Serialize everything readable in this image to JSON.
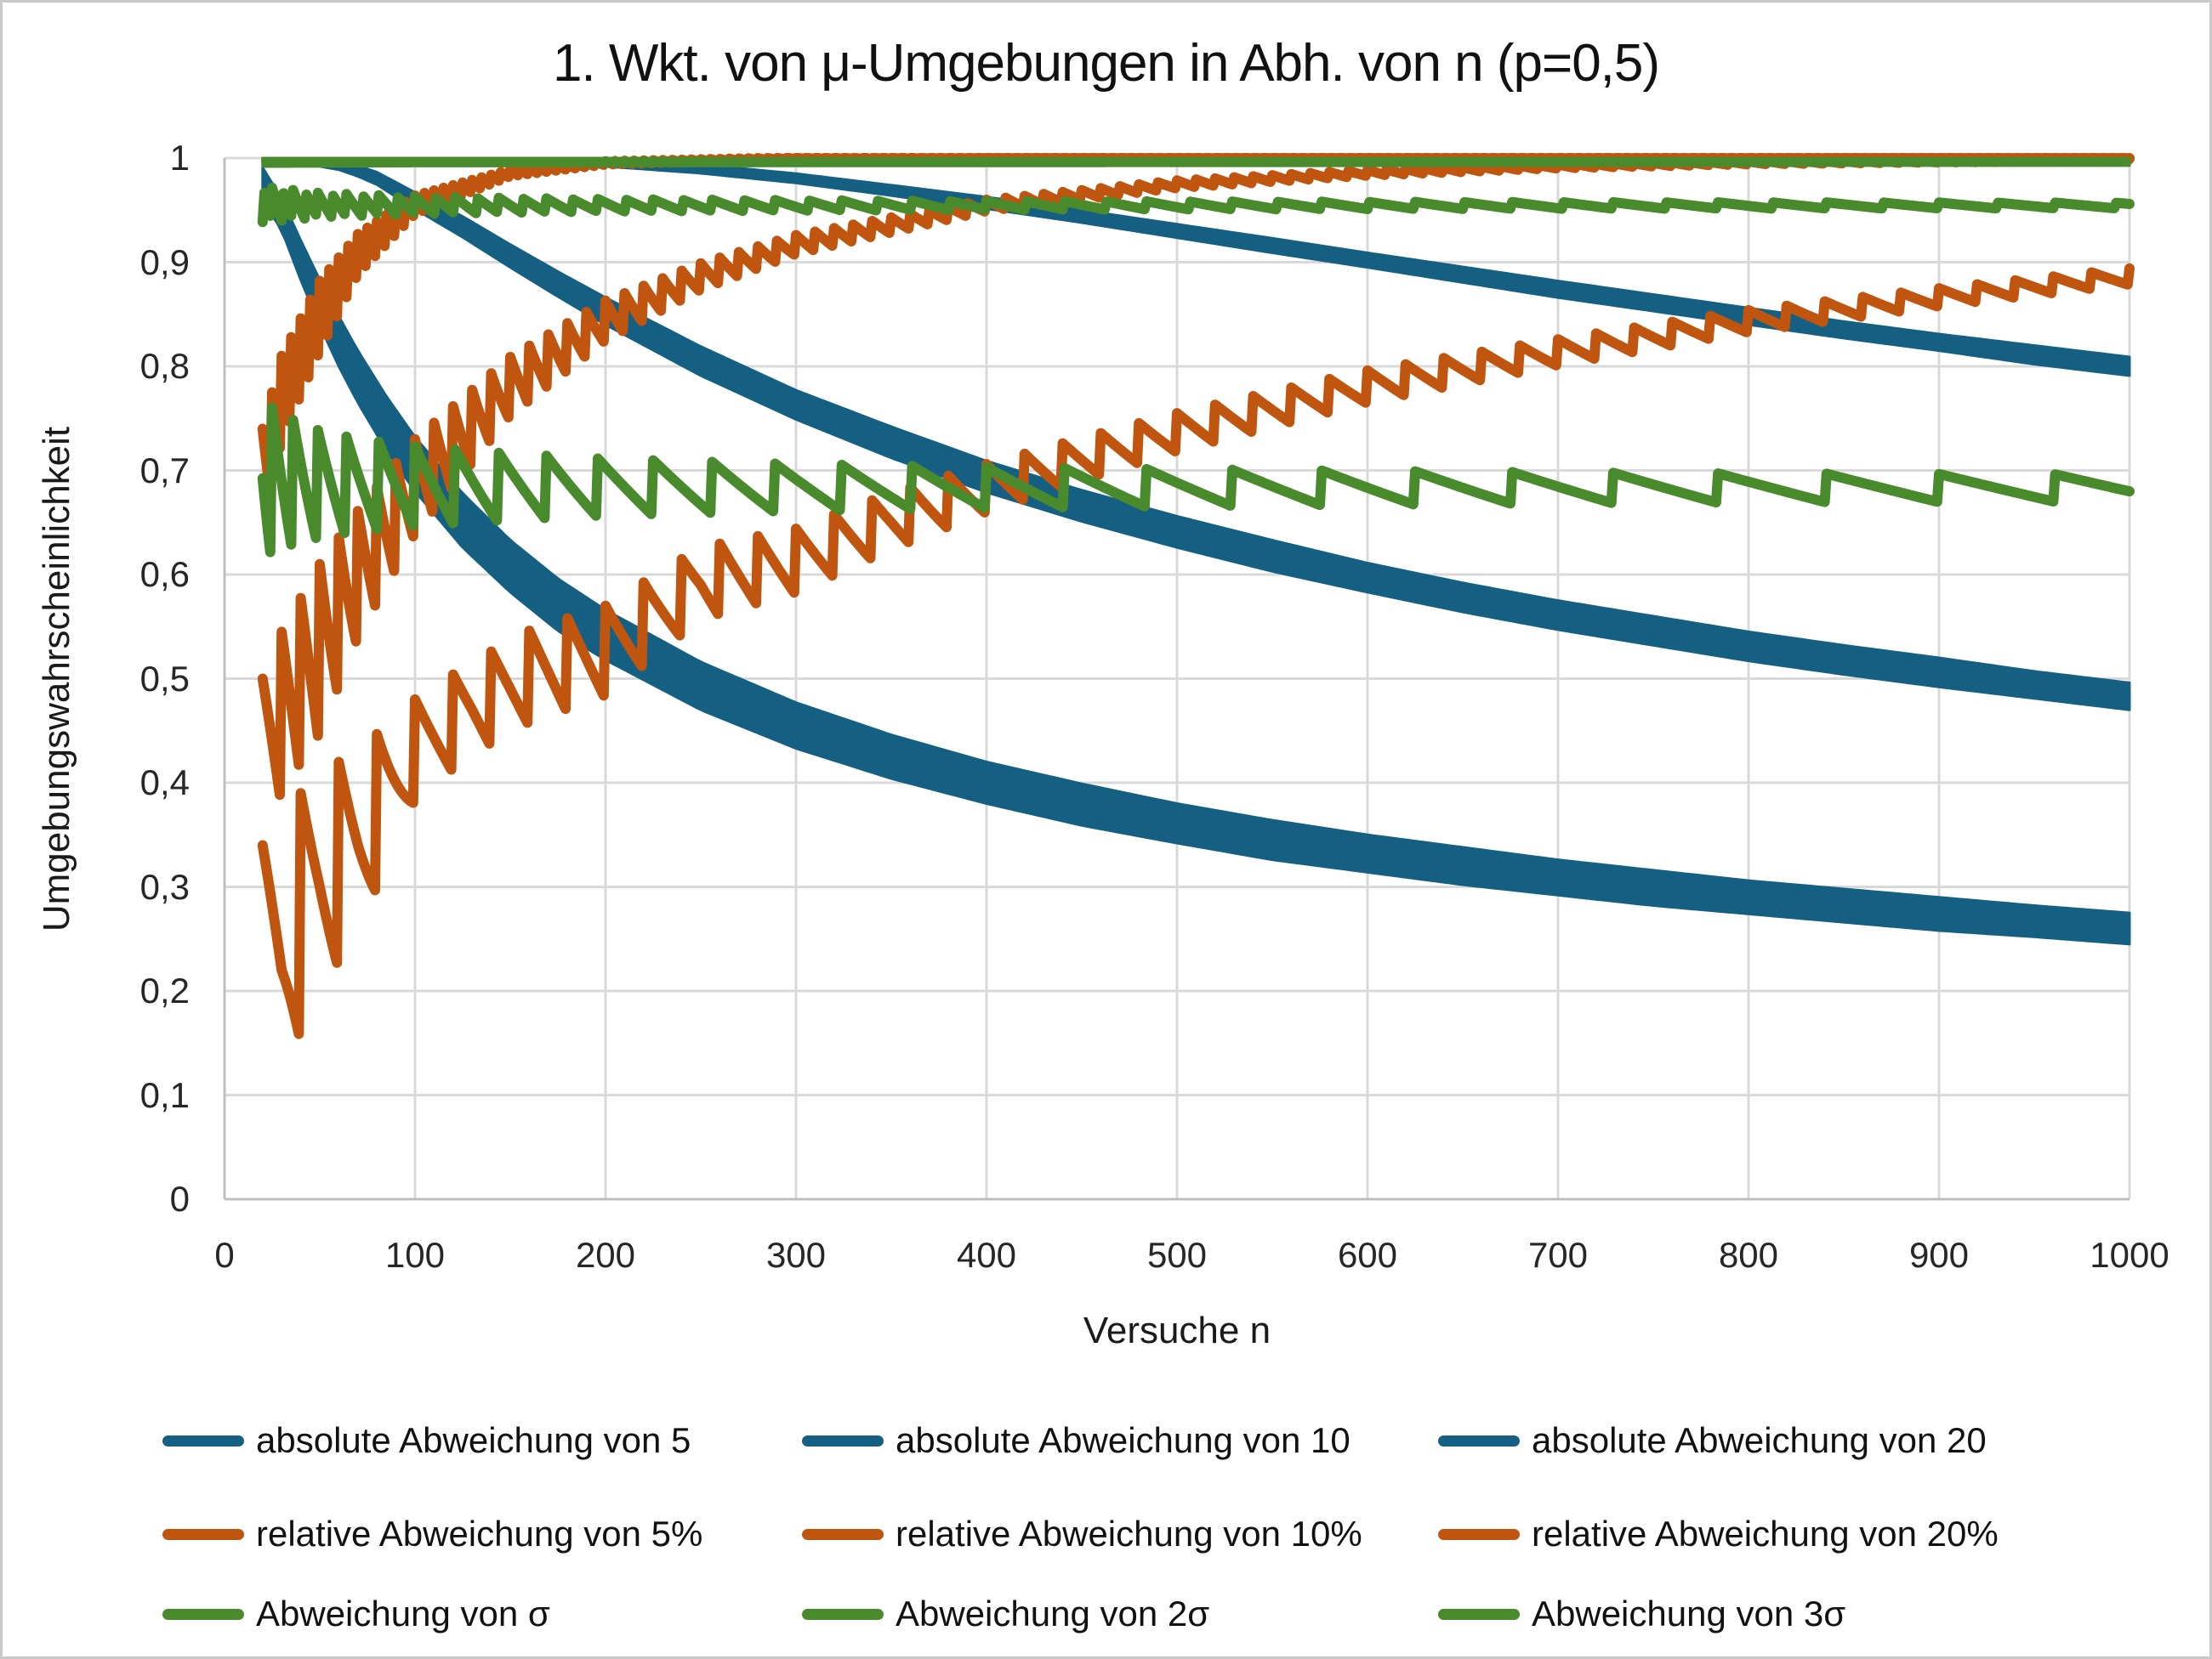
{
  "title": "1. Wkt. von μ-Umgebungen in Abh. von n (p=0,5)",
  "axes": {
    "x": {
      "title": "Versuche n",
      "min": 0,
      "max": 1000,
      "tick_labels": [
        "0",
        "100",
        "200",
        "300",
        "400",
        "500",
        "600",
        "700",
        "800",
        "900",
        "1000"
      ],
      "tick_values": [
        0,
        100,
        200,
        300,
        400,
        500,
        600,
        700,
        800,
        900,
        1000
      ]
    },
    "y": {
      "title": "Umgebungswahrscheinlichkeit",
      "min": 0,
      "max": 1,
      "tick_labels": [
        "0",
        "0,1",
        "0,2",
        "0,3",
        "0,4",
        "0,5",
        "0,6",
        "0,7",
        "0,8",
        "0,9",
        "1"
      ],
      "tick_values": [
        0,
        0.1,
        0.2,
        0.3,
        0.4,
        0.5,
        0.6,
        0.7,
        0.8,
        0.9,
        1
      ]
    }
  },
  "colors": {
    "blue": "#156082",
    "orange": "#C0550F",
    "green": "#498A2D",
    "grid": "#D9D9D9",
    "axis_line": "#BFBFBF",
    "tick_text": "#262626",
    "title_text": "#111111"
  },
  "chart_data": {
    "type": "line",
    "xlabel": "Versuche n",
    "ylabel": "Umgebungswahrscheinlichkeit",
    "xlim": [
      0,
      1000
    ],
    "ylim": [
      0,
      1
    ],
    "x_start": 20,
    "grid": true,
    "legend_position": "bottom",
    "point_format": "[n, p_mid, p_half_range] — p oscillates (binomial discreteness) around p_mid by ±p_half_range",
    "series": [
      {
        "name": "absolute Abweichung von 5",
        "color": "#156082",
        "style": "band",
        "tooth": null,
        "points": [
          [
            20,
            0.975,
            0.013
          ],
          [
            30,
            0.946,
            0.012
          ],
          [
            40,
            0.902,
            0.016
          ],
          [
            50,
            0.861,
            0.019
          ],
          [
            60,
            0.824,
            0.021
          ],
          [
            70,
            0.79,
            0.022
          ],
          [
            85,
            0.745,
            0.023
          ],
          [
            100,
            0.706,
            0.023
          ],
          [
            125,
            0.652,
            0.023
          ],
          [
            150,
            0.608,
            0.022
          ],
          [
            175,
            0.571,
            0.022
          ],
          [
            200,
            0.542,
            0.021
          ],
          [
            250,
            0.493,
            0.02
          ],
          [
            300,
            0.455,
            0.019
          ],
          [
            350,
            0.425,
            0.018
          ],
          [
            400,
            0.4,
            0.017
          ],
          [
            450,
            0.379,
            0.017
          ],
          [
            500,
            0.361,
            0.016
          ],
          [
            550,
            0.345,
            0.016
          ],
          [
            600,
            0.332,
            0.015
          ],
          [
            650,
            0.32,
            0.015
          ],
          [
            700,
            0.309,
            0.014
          ],
          [
            750,
            0.299,
            0.014
          ],
          [
            800,
            0.29,
            0.013
          ],
          [
            850,
            0.282,
            0.013
          ],
          [
            900,
            0.274,
            0.013
          ],
          [
            950,
            0.267,
            0.012
          ],
          [
            1000,
            0.26,
            0.012
          ]
        ]
      },
      {
        "name": "absolute Abweichung von 10",
        "color": "#156082",
        "style": "band",
        "tooth": null,
        "points": [
          [
            20,
            0.9999,
            0.0004
          ],
          [
            30,
            0.9998,
            0.0004
          ],
          [
            40,
            0.9991,
            0.0006
          ],
          [
            50,
            0.996,
            0.001
          ],
          [
            60,
            0.9933,
            0.0015
          ],
          [
            70,
            0.9875,
            0.002
          ],
          [
            80,
            0.9805,
            0.003
          ],
          [
            100,
            0.959,
            0.005
          ],
          [
            125,
            0.934,
            0.007
          ],
          [
            150,
            0.906,
            0.008
          ],
          [
            175,
            0.879,
            0.009
          ],
          [
            200,
            0.853,
            0.01
          ],
          [
            250,
            0.805,
            0.011
          ],
          [
            300,
            0.763,
            0.011
          ],
          [
            350,
            0.727,
            0.012
          ],
          [
            400,
            0.694,
            0.012
          ],
          [
            450,
            0.666,
            0.012
          ],
          [
            500,
            0.641,
            0.012
          ],
          [
            550,
            0.618,
            0.012
          ],
          [
            600,
            0.597,
            0.011
          ],
          [
            650,
            0.578,
            0.011
          ],
          [
            700,
            0.561,
            0.011
          ],
          [
            750,
            0.546,
            0.011
          ],
          [
            800,
            0.531,
            0.011
          ],
          [
            850,
            0.518,
            0.011
          ],
          [
            900,
            0.506,
            0.011
          ],
          [
            950,
            0.494,
            0.01
          ],
          [
            1000,
            0.483,
            0.01
          ]
        ]
      },
      {
        "name": "absolute Abweichung von 20",
        "color": "#156082",
        "style": "band",
        "tooth": null,
        "points": [
          [
            20,
            1.0,
            0.0003
          ],
          [
            100,
            0.9999,
            0.0004
          ],
          [
            150,
            0.999,
            0.0005
          ],
          [
            200,
            0.9958,
            0.0008
          ],
          [
            250,
            0.9896,
            0.0012
          ],
          [
            300,
            0.9806,
            0.0015
          ],
          [
            350,
            0.969,
            0.002
          ],
          [
            400,
            0.957,
            0.0026
          ],
          [
            450,
            0.944,
            0.003
          ],
          [
            500,
            0.93,
            0.0035
          ],
          [
            550,
            0.916,
            0.004
          ],
          [
            600,
            0.902,
            0.004
          ],
          [
            650,
            0.888,
            0.0045
          ],
          [
            700,
            0.874,
            0.005
          ],
          [
            750,
            0.861,
            0.005
          ],
          [
            800,
            0.848,
            0.005
          ],
          [
            850,
            0.835,
            0.005
          ],
          [
            900,
            0.823,
            0.005
          ],
          [
            950,
            0.811,
            0.006
          ],
          [
            1000,
            0.8,
            0.006
          ]
        ]
      },
      {
        "name": "relative Abweichung von 5%",
        "color": "#C0550F",
        "style": "teeth",
        "tooth": {
          "kind": "linear",
          "dn": 20
        },
        "points": [
          [
            20,
            0.25,
            0.09
          ],
          [
            30,
            0.22,
            0.1
          ],
          [
            40,
            0.27,
            0.12
          ],
          [
            50,
            0.3,
            0.11
          ],
          [
            70,
            0.34,
            0.09
          ],
          [
            100,
            0.43,
            0.05
          ],
          [
            130,
            0.47,
            0.046
          ],
          [
            160,
            0.5,
            0.046
          ],
          [
            200,
            0.525,
            0.045
          ],
          [
            250,
            0.59,
            0.036
          ],
          [
            300,
            0.612,
            0.032
          ],
          [
            350,
            0.65,
            0.028
          ],
          [
            400,
            0.682,
            0.024
          ],
          [
            450,
            0.71,
            0.021
          ],
          [
            500,
            0.736,
            0.019
          ],
          [
            600,
            0.78,
            0.016
          ],
          [
            700,
            0.813,
            0.013
          ],
          [
            800,
            0.843,
            0.011
          ],
          [
            900,
            0.866,
            0.009
          ],
          [
            1000,
            0.886,
            0.008
          ]
        ]
      },
      {
        "name": "relative Abweichung von 10%",
        "color": "#C0550F",
        "style": "teeth",
        "tooth": {
          "kind": "linear",
          "dn": 10
        },
        "points": [
          [
            20,
            0.42,
            0.08
          ],
          [
            30,
            0.46,
            0.085
          ],
          [
            50,
            0.52,
            0.09
          ],
          [
            70,
            0.594,
            0.067
          ],
          [
            100,
            0.68,
            0.05
          ],
          [
            150,
            0.778,
            0.031
          ],
          [
            200,
            0.842,
            0.021
          ],
          [
            250,
            0.885,
            0.014
          ],
          [
            300,
            0.916,
            0.01
          ],
          [
            400,
            0.954,
            0.006
          ],
          [
            500,
            0.9745,
            0.004
          ],
          [
            600,
            0.9856,
            0.003
          ],
          [
            700,
            0.9918,
            0.002
          ],
          [
            800,
            0.9953,
            0.0015
          ],
          [
            900,
            0.9968,
            0.0012
          ],
          [
            1000,
            0.9984,
            0.001
          ]
        ]
      },
      {
        "name": "relative Abweichung von 20%",
        "color": "#C0550F",
        "style": "teeth",
        "tooth": {
          "kind": "linear",
          "dn": 5
        },
        "points": [
          [
            20,
            0.68,
            0.06
          ],
          [
            30,
            0.76,
            0.05
          ],
          [
            50,
            0.84,
            0.042
          ],
          [
            70,
            0.903,
            0.024
          ],
          [
            100,
            0.953,
            0.011
          ],
          [
            150,
            0.985,
            0.004
          ],
          [
            200,
            0.995,
            0.002
          ],
          [
            300,
            0.9997,
            0.001
          ],
          [
            400,
            0.99995,
            0.0006
          ],
          [
            1000,
            1.0,
            0.0005
          ]
        ]
      },
      {
        "name": "Abweichung von σ",
        "color": "#498A2D",
        "style": "teeth",
        "tooth": {
          "kind": "sqrt",
          "step": 1
        },
        "points": [
          [
            20,
            0.683,
            0.085
          ],
          [
            30,
            0.683,
            0.07
          ],
          [
            50,
            0.683,
            0.055
          ],
          [
            70,
            0.683,
            0.047
          ],
          [
            100,
            0.683,
            0.04
          ],
          [
            150,
            0.683,
            0.033
          ],
          [
            200,
            0.683,
            0.028
          ],
          [
            300,
            0.683,
            0.023
          ],
          [
            400,
            0.683,
            0.02
          ],
          [
            500,
            0.683,
            0.018
          ],
          [
            600,
            0.683,
            0.0165
          ],
          [
            700,
            0.683,
            0.015
          ],
          [
            800,
            0.683,
            0.014
          ],
          [
            900,
            0.683,
            0.0135
          ],
          [
            1000,
            0.683,
            0.013
          ]
        ]
      },
      {
        "name": "Abweichung von 2σ",
        "color": "#498A2D",
        "style": "teeth",
        "tooth": {
          "kind": "sqrt",
          "step": 0.5
        },
        "points": [
          [
            20,
            0.9545,
            0.018
          ],
          [
            50,
            0.9545,
            0.012
          ],
          [
            100,
            0.9545,
            0.0085
          ],
          [
            200,
            0.9545,
            0.006
          ],
          [
            400,
            0.9545,
            0.0042
          ],
          [
            700,
            0.9545,
            0.0032
          ],
          [
            1000,
            0.9545,
            0.0027
          ]
        ]
      },
      {
        "name": "Abweichung von 3σ",
        "color": "#498A2D",
        "style": "band",
        "tooth": null,
        "points": [
          [
            20,
            0.9973,
            0.0025
          ],
          [
            100,
            0.9973,
            0.002
          ],
          [
            1000,
            0.9973,
            0.0015
          ]
        ]
      }
    ]
  },
  "legend": {
    "columns": 3,
    "items": [
      {
        "label": "absolute Abweichung von 5",
        "color": "#156082"
      },
      {
        "label": "absolute Abweichung von 10",
        "color": "#156082"
      },
      {
        "label": "absolute Abweichung von 20",
        "color": "#156082"
      },
      {
        "label": "relative Abweichung von 5%",
        "color": "#C0550F"
      },
      {
        "label": "relative Abweichung von 10%",
        "color": "#C0550F"
      },
      {
        "label": "relative Abweichung von 20%",
        "color": "#C0550F"
      },
      {
        "label": "Abweichung von σ",
        "color": "#498A2D"
      },
      {
        "label": "Abweichung von 2σ",
        "color": "#498A2D"
      },
      {
        "label": "Abweichung von 3σ",
        "color": "#498A2D"
      }
    ]
  }
}
